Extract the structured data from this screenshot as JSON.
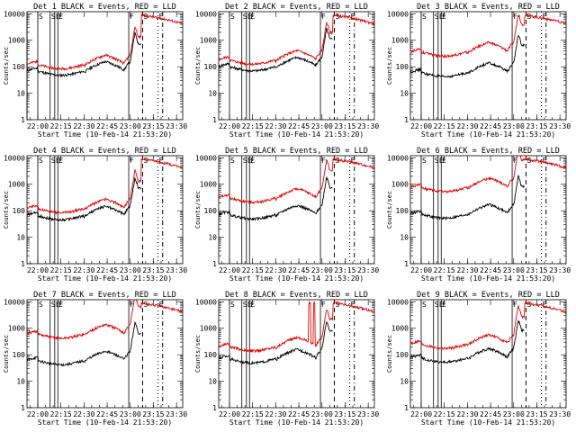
{
  "chart_data": {
    "type": "line",
    "xlabel": "Start Time (10-Feb-14 21:53:20)",
    "ylabel": "Counts/sec",
    "xticks": [
      "22:00",
      "22:15",
      "22:30",
      "22:45",
      "23:00",
      "23:15",
      "23:30"
    ],
    "yticks": [
      "1",
      "10",
      "100",
      "1000",
      "10000"
    ],
    "ylim": [
      1,
      12000
    ],
    "xlim_minutes": [
      -7,
      94
    ],
    "xtick_minutes": [
      0,
      15,
      30,
      45,
      60,
      75,
      90
    ],
    "colors": {
      "events": "#000000",
      "lld": "#e00000"
    },
    "marker_minutes": {
      "solid": [
        0,
        8,
        11,
        13,
        59
      ],
      "dashed": [
        68
      ],
      "dotted": [
        78,
        81
      ]
    },
    "panels": [
      {
        "title": "Det 1 BLACK = Events, RED = LLD",
        "black_base": 68,
        "red_base": 120,
        "extra_solid": [
          -7
        ],
        "red_spikes": []
      },
      {
        "title": "Det 2 BLACK = Events, RED = LLD",
        "black_base": 100,
        "red_base": 180,
        "extra_solid": [],
        "red_spikes": []
      },
      {
        "title": "Det 3 BLACK = Events, RED = LLD",
        "black_base": 60,
        "red_base": 360,
        "extra_solid": [],
        "red_spikes": []
      },
      {
        "title": "Det 4 BLACK = Events, RED = LLD",
        "black_base": 65,
        "red_base": 120,
        "extra_solid": [],
        "red_spikes": []
      },
      {
        "title": "Det 5 BLACK = Events, RED = LLD",
        "black_base": 70,
        "red_base": 300,
        "extra_solid": [],
        "red_spikes": []
      },
      {
        "title": "Det 6 BLACK = Events, RED = LLD",
        "black_base": 75,
        "red_base": 750,
        "extra_solid": [],
        "red_spikes": []
      },
      {
        "title": "Det 7 BLACK = Events, RED = LLD",
        "black_base": 60,
        "red_base": 600,
        "extra_solid": [],
        "red_spikes": []
      },
      {
        "title": "Det 8 BLACK = Events, RED = LLD",
        "black_base": 70,
        "red_base": 200,
        "extra_solid": [],
        "red_spikes": [
          52,
          55
        ]
      },
      {
        "title": "Det 9 BLACK = Events, RED = LLD",
        "black_base": 75,
        "red_base": 250,
        "extra_solid": [],
        "red_spikes": []
      }
    ]
  },
  "flag_glyphs": [
    "S",
    "S",
    "E",
    "E",
    "F",
    "S",
    "E"
  ]
}
